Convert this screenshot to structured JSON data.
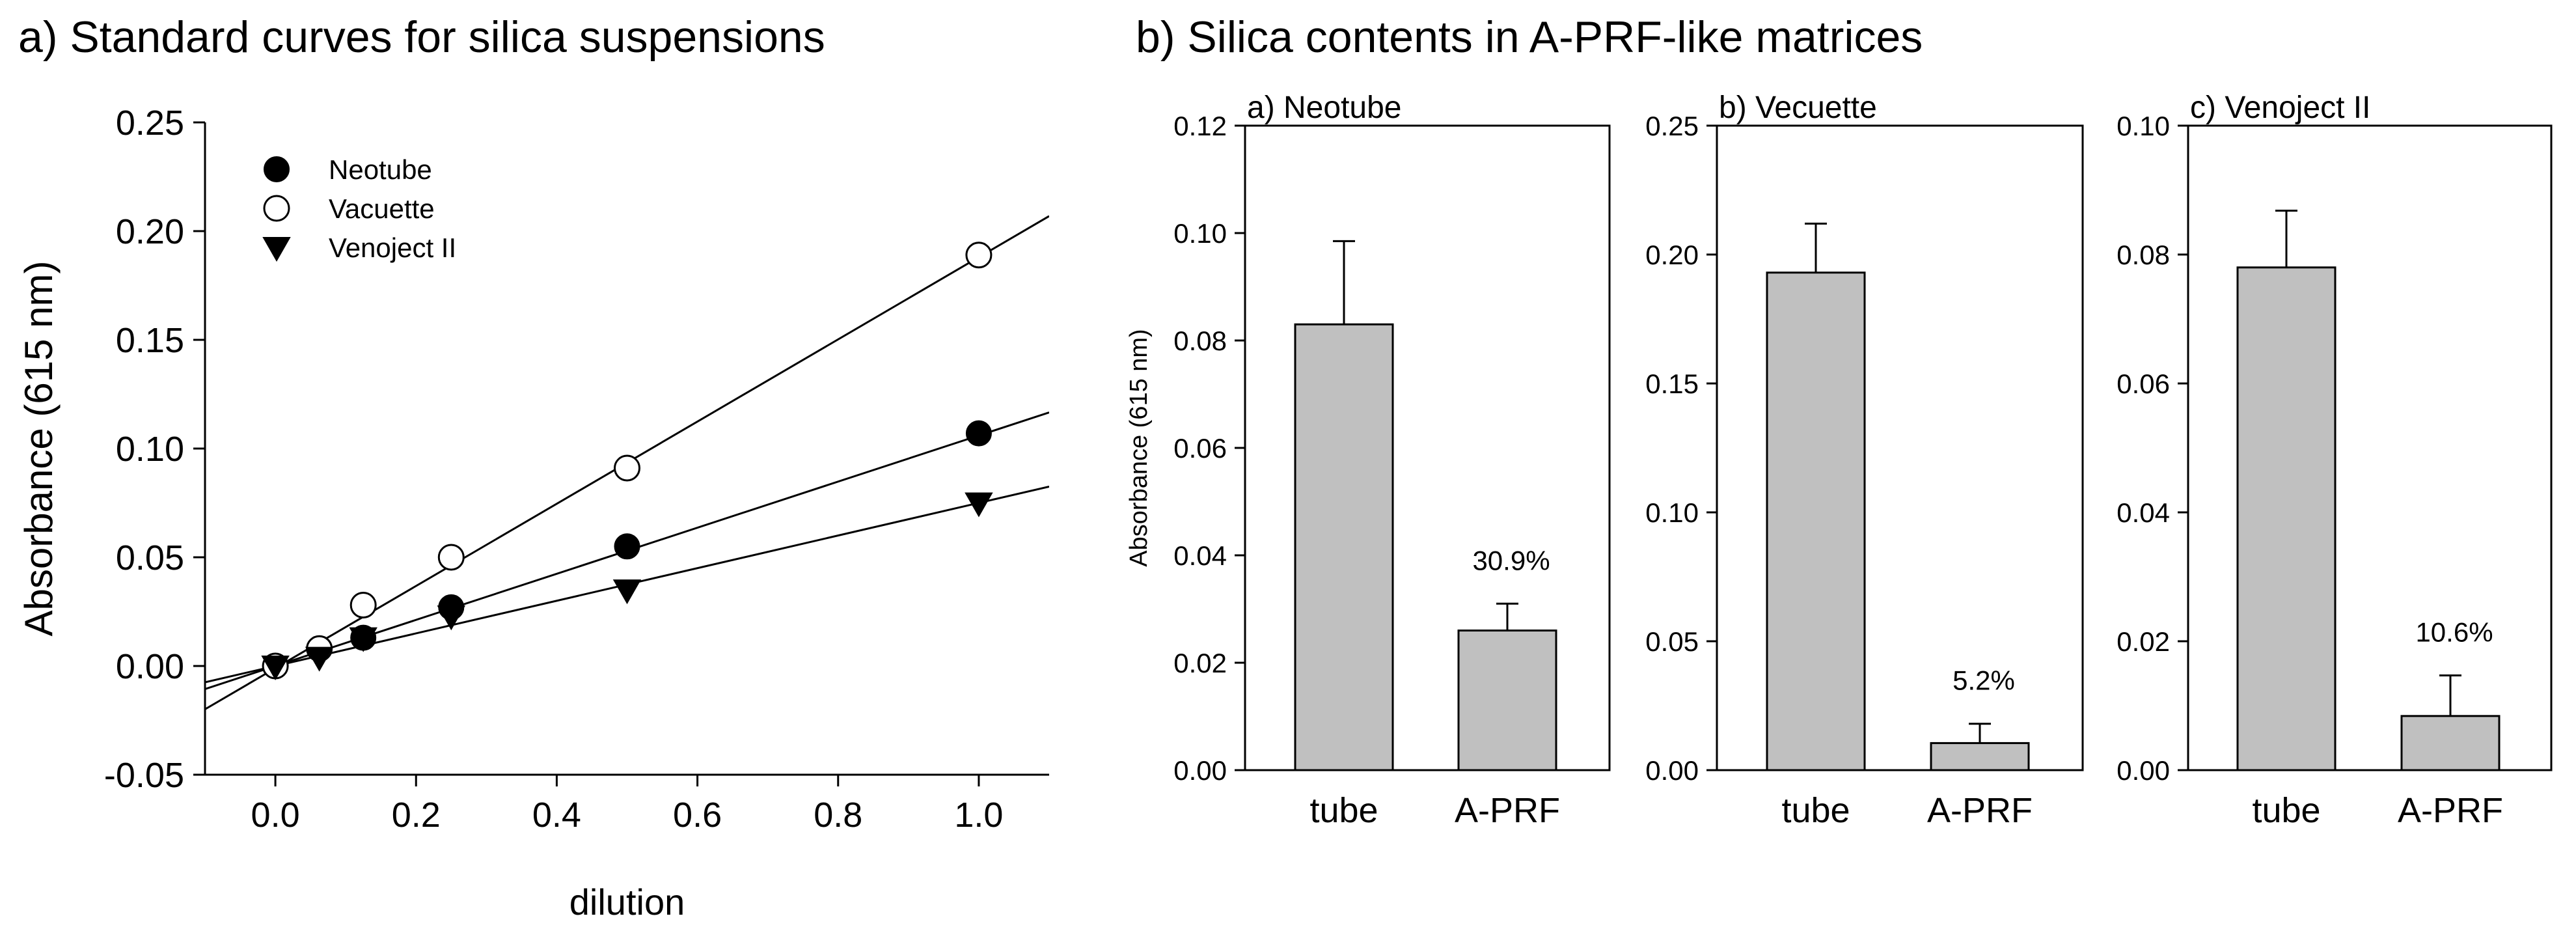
{
  "panel_a_heading": "a) Standard curves for silica suspensions",
  "panel_b_heading": "b) Silica contents in A-PRF-like matrices",
  "chart_data": [
    {
      "type": "scatter",
      "title": "",
      "xlabel": "dilution",
      "ylabel": "Absorbance (615 nm)",
      "xlim": [
        -0.1,
        1.1
      ],
      "ylim": [
        -0.05,
        0.25
      ],
      "xticks": [
        "0.0",
        "0.2",
        "0.4",
        "0.6",
        "0.8",
        "1.0"
      ],
      "yticks": [
        "-0.05",
        "0.00",
        "0.05",
        "0.10",
        "0.15",
        "0.20",
        "0.25"
      ],
      "grid": false,
      "legend_position": "top-left",
      "series": [
        {
          "name": "Neotube",
          "marker": "filled-circle",
          "color": "#000000",
          "points": [
            [
              0.0,
              0.0
            ],
            [
              0.125,
              0.013
            ],
            [
              0.25,
              0.027
            ],
            [
              0.5,
              0.055
            ],
            [
              1.0,
              0.107
            ]
          ],
          "fit": {
            "slope": 0.106,
            "intercept": 0.0
          }
        },
        {
          "name": "Vacuette",
          "marker": "open-circle",
          "color": "#000000",
          "points": [
            [
              0.0,
              0.0
            ],
            [
              0.0625,
              0.008
            ],
            [
              0.125,
              0.028
            ],
            [
              0.25,
              0.05
            ],
            [
              0.5,
              0.091
            ],
            [
              1.0,
              0.189
            ]
          ],
          "fit": {
            "slope": 0.189,
            "intercept": -0.001
          }
        },
        {
          "name": "Venoject II",
          "marker": "filled-triangle-down",
          "color": "#000000",
          "points": [
            [
              0.0,
              0.0
            ],
            [
              0.0625,
              0.004
            ],
            [
              0.125,
              0.013
            ],
            [
              0.25,
              0.023
            ],
            [
              0.5,
              0.035
            ],
            [
              1.0,
              0.075
            ]
          ],
          "fit": {
            "slope": 0.075,
            "intercept": 0.0
          }
        }
      ]
    },
    {
      "type": "bar",
      "title": "a) Neotube",
      "ylabel": "Absorbance (615 nm)",
      "categories": [
        "tube",
        "A-PRF"
      ],
      "values": [
        0.083,
        0.026
      ],
      "errors": [
        0.0155,
        0.005
      ],
      "annotations": [
        "",
        "30.9%"
      ],
      "ylim": [
        0,
        0.12
      ],
      "yticks": [
        "0.00",
        "0.02",
        "0.04",
        "0.06",
        "0.08",
        "0.10",
        "0.12"
      ],
      "bar_color": "#c0c0c0"
    },
    {
      "type": "bar",
      "title": "b) Vecuette",
      "ylabel": "",
      "categories": [
        "tube",
        "A-PRF"
      ],
      "values": [
        0.193,
        0.0105
      ],
      "errors": [
        0.019,
        0.0075
      ],
      "annotations": [
        "",
        "5.2%"
      ],
      "ylim": [
        0,
        0.25
      ],
      "yticks": [
        "0.00",
        "0.05",
        "0.10",
        "0.15",
        "0.20",
        "0.25"
      ],
      "bar_color": "#c0c0c0"
    },
    {
      "type": "bar",
      "title": "c) Venoject II",
      "ylabel": "",
      "categories": [
        "tube",
        "A-PRF"
      ],
      "values": [
        0.078,
        0.0084
      ],
      "errors": [
        0.0088,
        0.0063
      ],
      "annotations": [
        "",
        "10.6%"
      ],
      "ylim": [
        0,
        0.1
      ],
      "yticks": [
        "0.00",
        "0.02",
        "0.04",
        "0.06",
        "0.08",
        "0.10"
      ],
      "bar_color": "#c0c0c0"
    }
  ]
}
